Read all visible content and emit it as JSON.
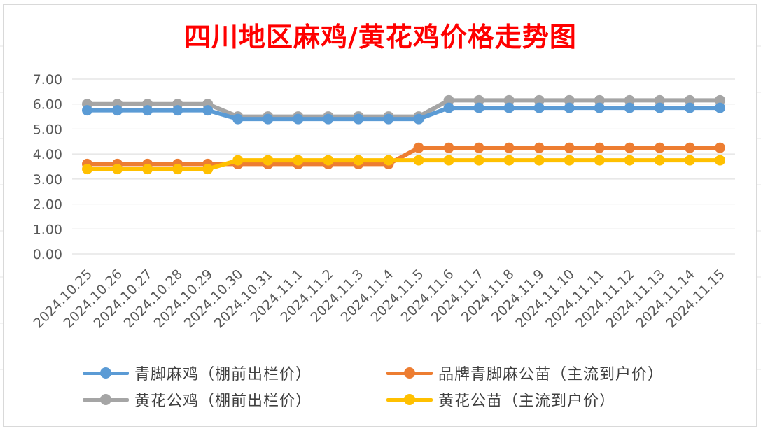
{
  "chart_data": {
    "type": "line",
    "title": "四川地区麻鸡/黄花鸡价格走势图",
    "categories": [
      "2024.10.25",
      "2024.10.26",
      "2024.10.27",
      "2024.10.28",
      "2024.10.29",
      "2024.10.30",
      "2024.10.31",
      "2024.11.1",
      "2024.11.2",
      "2024.11.3",
      "2024.11.4",
      "2024.11.5",
      "2024.11.6",
      "2024.11.7",
      "2024.11.8",
      "2024.11.9",
      "2024.11.10",
      "2024.11.11",
      "2024.11.12",
      "2024.11.13",
      "2024.11.14",
      "2024.11.15"
    ],
    "yticks": [
      "0.00",
      "1.00",
      "2.00",
      "3.00",
      "4.00",
      "5.00",
      "6.00",
      "7.00"
    ],
    "ylim": [
      0,
      7
    ],
    "grid": true,
    "legend_position": "bottom",
    "series": [
      {
        "name": "黄花公鸡（棚前出栏价）",
        "color": "#a5a5a5",
        "values": [
          6.0,
          6.0,
          6.0,
          6.0,
          6.0,
          5.5,
          5.5,
          5.5,
          5.5,
          5.5,
          5.5,
          5.5,
          6.15,
          6.15,
          6.15,
          6.15,
          6.15,
          6.15,
          6.15,
          6.15,
          6.15,
          6.15
        ]
      },
      {
        "name": "青脚麻鸡（棚前出栏价）",
        "color": "#5b9bd5",
        "values": [
          5.75,
          5.75,
          5.75,
          5.75,
          5.75,
          5.4,
          5.4,
          5.4,
          5.4,
          5.4,
          5.4,
          5.4,
          5.85,
          5.85,
          5.85,
          5.85,
          5.85,
          5.85,
          5.85,
          5.85,
          5.85,
          5.85
        ]
      },
      {
        "name": "品牌青脚麻公苗（主流到户价）",
        "color": "#ed7d31",
        "values": [
          3.6,
          3.6,
          3.6,
          3.6,
          3.6,
          3.6,
          3.6,
          3.6,
          3.6,
          3.6,
          3.6,
          4.25,
          4.25,
          4.25,
          4.25,
          4.25,
          4.25,
          4.25,
          4.25,
          4.25,
          4.25,
          4.25
        ]
      },
      {
        "name": "黄花公苗（主流到户价）",
        "color": "#ffc000",
        "values": [
          3.4,
          3.4,
          3.4,
          3.4,
          3.4,
          3.75,
          3.75,
          3.75,
          3.75,
          3.75,
          3.75,
          3.75,
          3.75,
          3.75,
          3.75,
          3.75,
          3.75,
          3.75,
          3.75,
          3.75,
          3.75,
          3.75
        ]
      }
    ]
  },
  "legend": {
    "items": [
      {
        "label": "青脚麻鸡（棚前出栏价）",
        "color": "#5b9bd5"
      },
      {
        "label": "品牌青脚麻公苗（主流到户价）",
        "color": "#ed7d31"
      },
      {
        "label": "黄花公鸡（棚前出栏价）",
        "color": "#a5a5a5"
      },
      {
        "label": "黄花公苗（主流到户价）",
        "color": "#ffc000"
      }
    ]
  }
}
